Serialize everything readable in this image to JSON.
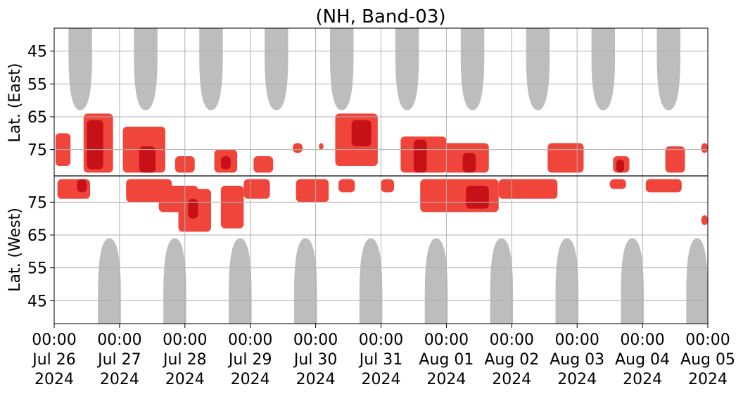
{
  "chart_data": {
    "type": "heatmap",
    "title": "(NH, Band-03)",
    "xlabel": "",
    "ylabel_top": "Lat. (East)",
    "ylabel_bottom": "Lat. (West)",
    "x_range": [
      "2024-07-26T00:00",
      "2024-08-05T00:00"
    ],
    "x_ticks": [
      {
        "date": "2024-07-26",
        "lines": [
          "00:00",
          "Jul 26",
          "2024"
        ]
      },
      {
        "date": "2024-07-27",
        "lines": [
          "00:00",
          "Jul 27",
          "2024"
        ]
      },
      {
        "date": "2024-07-28",
        "lines": [
          "00:00",
          "Jul 28",
          "2024"
        ]
      },
      {
        "date": "2024-07-29",
        "lines": [
          "00:00",
          "Jul 29",
          "2024"
        ]
      },
      {
        "date": "2024-07-30",
        "lines": [
          "00:00",
          "Jul 30",
          "2024"
        ]
      },
      {
        "date": "2024-07-31",
        "lines": [
          "00:00",
          "Jul 31",
          "2024"
        ]
      },
      {
        "date": "2024-08-01",
        "lines": [
          "00:00",
          "Aug 01",
          "2024"
        ]
      },
      {
        "date": "2024-08-02",
        "lines": [
          "00:00",
          "Aug 02",
          "2024"
        ]
      },
      {
        "date": "2024-08-03",
        "lines": [
          "00:00",
          "Aug 03",
          "2024"
        ]
      },
      {
        "date": "2024-08-04",
        "lines": [
          "00:00",
          "Aug 04",
          "2024"
        ]
      },
      {
        "date": "2024-08-05",
        "lines": [
          "00:00",
          "Aug 05",
          "2024"
        ]
      }
    ],
    "y_ticks_top": [
      45,
      55,
      65,
      75
    ],
    "y_ticks_bottom": [
      75,
      65,
      55,
      45
    ],
    "y_range_each_half": [
      38,
      83
    ],
    "grid": true,
    "colors": {
      "no_data": "#bdbdbd",
      "level_high": "#c81018",
      "level_mid": "#f0453a",
      "center_line": "#000000",
      "grid": "#b0b0b0"
    },
    "no_data_regions": [
      {
        "half": "east",
        "start": 0.22,
        "end": 0.58,
        "lat_edge": 63
      },
      {
        "half": "east",
        "start": 1.22,
        "end": 1.58,
        "lat_edge": 63
      },
      {
        "half": "east",
        "start": 2.22,
        "end": 2.58,
        "lat_edge": 63
      },
      {
        "half": "east",
        "start": 3.22,
        "end": 3.58,
        "lat_edge": 63
      },
      {
        "half": "east",
        "start": 4.22,
        "end": 4.58,
        "lat_edge": 63
      },
      {
        "half": "east",
        "start": 5.22,
        "end": 5.58,
        "lat_edge": 63
      },
      {
        "half": "east",
        "start": 6.22,
        "end": 6.58,
        "lat_edge": 63
      },
      {
        "half": "east",
        "start": 7.22,
        "end": 7.58,
        "lat_edge": 63
      },
      {
        "half": "east",
        "start": 8.22,
        "end": 8.58,
        "lat_edge": 63
      },
      {
        "half": "east",
        "start": 9.22,
        "end": 9.58,
        "lat_edge": 63
      },
      {
        "half": "west",
        "start": 0.67,
        "end": 1.02,
        "lat_edge": 64
      },
      {
        "half": "west",
        "start": 1.67,
        "end": 2.02,
        "lat_edge": 64
      },
      {
        "half": "west",
        "start": 2.67,
        "end": 3.02,
        "lat_edge": 64
      },
      {
        "half": "west",
        "start": 3.67,
        "end": 4.02,
        "lat_edge": 64
      },
      {
        "half": "west",
        "start": 4.67,
        "end": 5.02,
        "lat_edge": 64
      },
      {
        "half": "west",
        "start": 5.67,
        "end": 6.02,
        "lat_edge": 64
      },
      {
        "half": "west",
        "start": 6.67,
        "end": 7.02,
        "lat_edge": 64
      },
      {
        "half": "west",
        "start": 7.67,
        "end": 8.02,
        "lat_edge": 64
      },
      {
        "half": "west",
        "start": 8.67,
        "end": 9.02,
        "lat_edge": 64
      },
      {
        "half": "west",
        "start": 9.67,
        "end": 10.0,
        "lat_edge": 64
      }
    ],
    "activity_regions": [
      {
        "half": "east",
        "start": 0.02,
        "end": 0.25,
        "lat_min": 70,
        "lat_max": 80,
        "level": "mid"
      },
      {
        "half": "east",
        "start": 0.45,
        "end": 0.9,
        "lat_min": 64,
        "lat_max": 82,
        "level": "mid"
      },
      {
        "half": "east",
        "start": 0.5,
        "end": 0.75,
        "lat_min": 66,
        "lat_max": 81,
        "level": "high"
      },
      {
        "half": "east",
        "start": 1.05,
        "end": 1.7,
        "lat_min": 68,
        "lat_max": 82,
        "level": "mid"
      },
      {
        "half": "east",
        "start": 1.3,
        "end": 1.55,
        "lat_min": 74,
        "lat_max": 82,
        "level": "high"
      },
      {
        "half": "east",
        "start": 1.85,
        "end": 2.15,
        "lat_min": 77,
        "lat_max": 82,
        "level": "mid"
      },
      {
        "half": "east",
        "start": 2.45,
        "end": 2.8,
        "lat_min": 75,
        "lat_max": 82,
        "level": "mid"
      },
      {
        "half": "east",
        "start": 2.55,
        "end": 2.7,
        "lat_min": 77,
        "lat_max": 81,
        "level": "high"
      },
      {
        "half": "east",
        "start": 3.05,
        "end": 3.35,
        "lat_min": 77,
        "lat_max": 82,
        "level": "mid"
      },
      {
        "half": "east",
        "start": 3.65,
        "end": 3.8,
        "lat_min": 73,
        "lat_max": 76,
        "level": "mid"
      },
      {
        "half": "east",
        "start": 4.05,
        "end": 4.12,
        "lat_min": 73,
        "lat_max": 75,
        "level": "mid"
      },
      {
        "half": "east",
        "start": 4.3,
        "end": 4.95,
        "lat_min": 64,
        "lat_max": 80,
        "level": "mid"
      },
      {
        "half": "east",
        "start": 4.55,
        "end": 4.85,
        "lat_min": 66,
        "lat_max": 74,
        "level": "high"
      },
      {
        "half": "east",
        "start": 5.3,
        "end": 6.0,
        "lat_min": 71,
        "lat_max": 82,
        "level": "mid"
      },
      {
        "half": "east",
        "start": 5.5,
        "end": 5.7,
        "lat_min": 72,
        "lat_max": 82,
        "level": "high"
      },
      {
        "half": "east",
        "start": 5.95,
        "end": 6.65,
        "lat_min": 73,
        "lat_max": 82,
        "level": "mid"
      },
      {
        "half": "east",
        "start": 6.25,
        "end": 6.45,
        "lat_min": 76,
        "lat_max": 82,
        "level": "high"
      },
      {
        "half": "east",
        "start": 7.55,
        "end": 8.1,
        "lat_min": 73,
        "lat_max": 82,
        "level": "mid"
      },
      {
        "half": "east",
        "start": 8.55,
        "end": 8.8,
        "lat_min": 77,
        "lat_max": 82,
        "level": "mid"
      },
      {
        "half": "east",
        "start": 8.6,
        "end": 8.72,
        "lat_min": 78,
        "lat_max": 82,
        "level": "high"
      },
      {
        "half": "east",
        "start": 9.35,
        "end": 9.65,
        "lat_min": 74,
        "lat_max": 82,
        "level": "mid"
      },
      {
        "half": "east",
        "start": 9.9,
        "end": 10.0,
        "lat_min": 73,
        "lat_max": 76,
        "level": "mid"
      },
      {
        "half": "west",
        "start": 0.05,
        "end": 0.55,
        "lat_min": 76,
        "lat_max": 82,
        "level": "mid"
      },
      {
        "half": "west",
        "start": 0.35,
        "end": 0.5,
        "lat_min": 78,
        "lat_max": 82,
        "level": "high"
      },
      {
        "half": "west",
        "start": 1.1,
        "end": 1.8,
        "lat_min": 75,
        "lat_max": 82,
        "level": "mid"
      },
      {
        "half": "west",
        "start": 1.6,
        "end": 2.2,
        "lat_min": 72,
        "lat_max": 80,
        "level": "mid"
      },
      {
        "half": "west",
        "start": 1.9,
        "end": 2.4,
        "lat_min": 66,
        "lat_max": 79,
        "level": "mid"
      },
      {
        "half": "west",
        "start": 2.05,
        "end": 2.2,
        "lat_min": 70,
        "lat_max": 76,
        "level": "high"
      },
      {
        "half": "west",
        "start": 2.55,
        "end": 2.9,
        "lat_min": 67,
        "lat_max": 80,
        "level": "mid"
      },
      {
        "half": "west",
        "start": 2.9,
        "end": 3.3,
        "lat_min": 76,
        "lat_max": 82,
        "level": "mid"
      },
      {
        "half": "west",
        "start": 3.7,
        "end": 4.2,
        "lat_min": 75,
        "lat_max": 82,
        "level": "mid"
      },
      {
        "half": "west",
        "start": 4.35,
        "end": 4.6,
        "lat_min": 78,
        "lat_max": 82,
        "level": "mid"
      },
      {
        "half": "west",
        "start": 5.0,
        "end": 5.2,
        "lat_min": 78,
        "lat_max": 82,
        "level": "mid"
      },
      {
        "half": "west",
        "start": 5.6,
        "end": 6.8,
        "lat_min": 72,
        "lat_max": 82,
        "level": "mid"
      },
      {
        "half": "west",
        "start": 6.3,
        "end": 6.65,
        "lat_min": 73,
        "lat_max": 80,
        "level": "high"
      },
      {
        "half": "west",
        "start": 6.8,
        "end": 7.7,
        "lat_min": 76,
        "lat_max": 82,
        "level": "mid"
      },
      {
        "half": "west",
        "start": 8.5,
        "end": 8.75,
        "lat_min": 79,
        "lat_max": 82,
        "level": "mid"
      },
      {
        "half": "west",
        "start": 9.05,
        "end": 9.6,
        "lat_min": 78,
        "lat_max": 82,
        "level": "mid"
      },
      {
        "half": "west",
        "start": 9.9,
        "end": 10.0,
        "lat_min": 68,
        "lat_max": 71,
        "level": "mid"
      }
    ]
  }
}
